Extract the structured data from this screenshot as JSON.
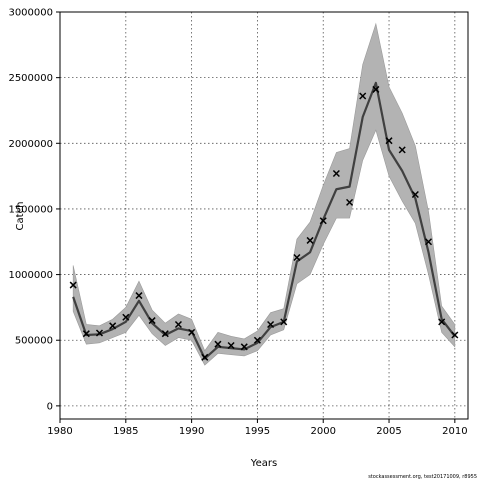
{
  "chart_data": {
    "type": "line",
    "title": "",
    "xlabel": "Years",
    "ylabel": "Catch",
    "xlim": [
      1980,
      2011
    ],
    "ylim": [
      -100000,
      3000000
    ],
    "xticks": [
      1980,
      1985,
      1990,
      1995,
      2000,
      2005,
      2010
    ],
    "yticks": [
      0,
      500000,
      1000000,
      1500000,
      2000000,
      2500000,
      3000000
    ],
    "grid": true,
    "colors": {
      "line": "#404040",
      "band": "#b3b3b3",
      "band_edge": "#9a9a9a",
      "marker": "#000000",
      "grid": "#555555"
    },
    "series": [
      {
        "role": "estimate",
        "style": "line",
        "x": [
          1981,
          1982,
          1983,
          1984,
          1985,
          1986,
          1987,
          1988,
          1989,
          1990,
          1991,
          1992,
          1993,
          1994,
          1995,
          1996,
          1997,
          1998,
          1999,
          2000,
          2001,
          2002,
          2003,
          2004,
          2005,
          2006,
          2007,
          2008,
          2009,
          2010
        ],
        "y": [
          830000,
          540000,
          545000,
          585000,
          640000,
          800000,
          630000,
          540000,
          590000,
          570000,
          360000,
          450000,
          440000,
          430000,
          480000,
          600000,
          640000,
          1100000,
          1170000,
          1420000,
          1650000,
          1670000,
          2200000,
          2460000,
          1950000,
          1790000,
          1580000,
          1170000,
          660000,
          530000
        ],
        "lower": [
          720000,
          470000,
          480000,
          520000,
          560000,
          690000,
          550000,
          460000,
          520000,
          500000,
          310000,
          400000,
          390000,
          380000,
          420000,
          540000,
          580000,
          930000,
          1000000,
          1230000,
          1430000,
          1430000,
          1870000,
          2100000,
          1750000,
          1560000,
          1390000,
          1000000,
          560000,
          450000
        ],
        "upper": [
          1070000,
          620000,
          610000,
          660000,
          750000,
          950000,
          730000,
          630000,
          700000,
          660000,
          420000,
          560000,
          530000,
          510000,
          570000,
          710000,
          740000,
          1270000,
          1400000,
          1680000,
          1930000,
          1960000,
          2600000,
          2910000,
          2430000,
          2230000,
          1980000,
          1480000,
          760000,
          620000
        ]
      },
      {
        "role": "observed",
        "style": "marker-x",
        "x": [
          1981,
          1982,
          1983,
          1984,
          1985,
          1986,
          1987,
          1988,
          1989,
          1990,
          1991,
          1992,
          1993,
          1994,
          1995,
          1996,
          1997,
          1998,
          1999,
          2000,
          2001,
          2002,
          2003,
          2004,
          2005,
          2006,
          2007,
          2008,
          2009,
          2010
        ],
        "y": [
          920000,
          550000,
          555000,
          610000,
          675000,
          840000,
          650000,
          550000,
          620000,
          560000,
          370000,
          470000,
          460000,
          450000,
          500000,
          620000,
          640000,
          1130000,
          1260000,
          1410000,
          1770000,
          1550000,
          2360000,
          2410000,
          2020000,
          1950000,
          1610000,
          1250000,
          640000,
          540000
        ]
      }
    ]
  },
  "footer_text": "stockassessment.org, test20171009, r8955"
}
